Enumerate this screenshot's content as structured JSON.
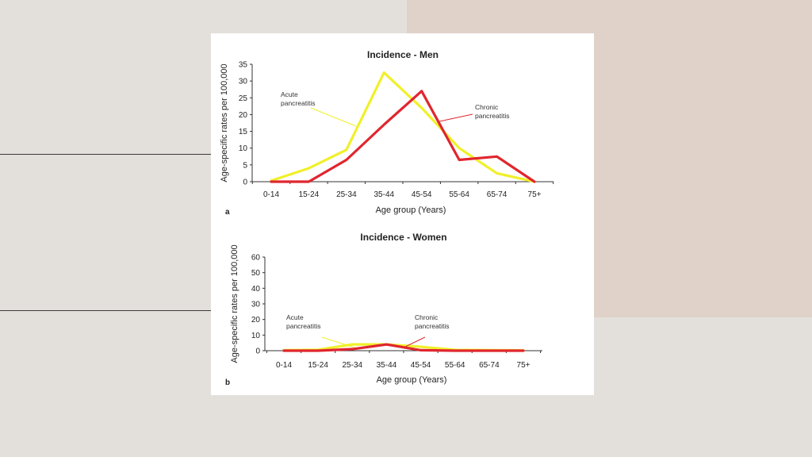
{
  "chart_data": [
    {
      "type": "line",
      "panel": "a",
      "title": "Incidence - Men",
      "xlabel": "Age group (Years)",
      "ylabel": "Age-specific rates per 100,000",
      "categories": [
        "0-14",
        "15-24",
        "25-34",
        "35-44",
        "45-54",
        "55-64",
        "65-74",
        "75+"
      ],
      "ylim": [
        0,
        35
      ],
      "yticks": [
        0,
        5,
        10,
        15,
        20,
        25,
        30,
        35
      ],
      "series": [
        {
          "name": "Acute pancreatitis",
          "label": [
            "Acute",
            "pancreatitis"
          ],
          "color": "#f0f02a",
          "values": [
            0.3,
            4,
            9.5,
            32.5,
            22,
            10,
            2.5,
            0
          ]
        },
        {
          "name": "Chronic pancreatitis",
          "label": [
            "Chronic",
            "pancreatitis"
          ],
          "color": "#e0262f",
          "values": [
            0,
            0,
            6.5,
            17,
            27,
            6.5,
            7.5,
            0
          ]
        }
      ]
    },
    {
      "type": "line",
      "panel": "b",
      "title": "Incidence - Women",
      "xlabel": "Age group (Years)",
      "ylabel": "Age-specific rates per 100,000",
      "categories": [
        "0-14",
        "15-24",
        "25-34",
        "35-44",
        "45-54",
        "55-64",
        "65-74",
        "75+"
      ],
      "ylim": [
        0,
        60
      ],
      "yticks": [
        0,
        10,
        20,
        30,
        40,
        50,
        60
      ],
      "series": [
        {
          "name": "Acute pancreatitis",
          "label": [
            "Acute",
            "pancreatitis"
          ],
          "color": "#f0f02a",
          "values": [
            0.3,
            0.6,
            4,
            4,
            2.5,
            0.5,
            0.3,
            0.2
          ]
        },
        {
          "name": "Chronic pancreatitis",
          "label": [
            "Chronic",
            "pancreatitis"
          ],
          "color": "#e0262f",
          "values": [
            0,
            0,
            1,
            4,
            0.3,
            0,
            0,
            0
          ]
        }
      ]
    }
  ]
}
